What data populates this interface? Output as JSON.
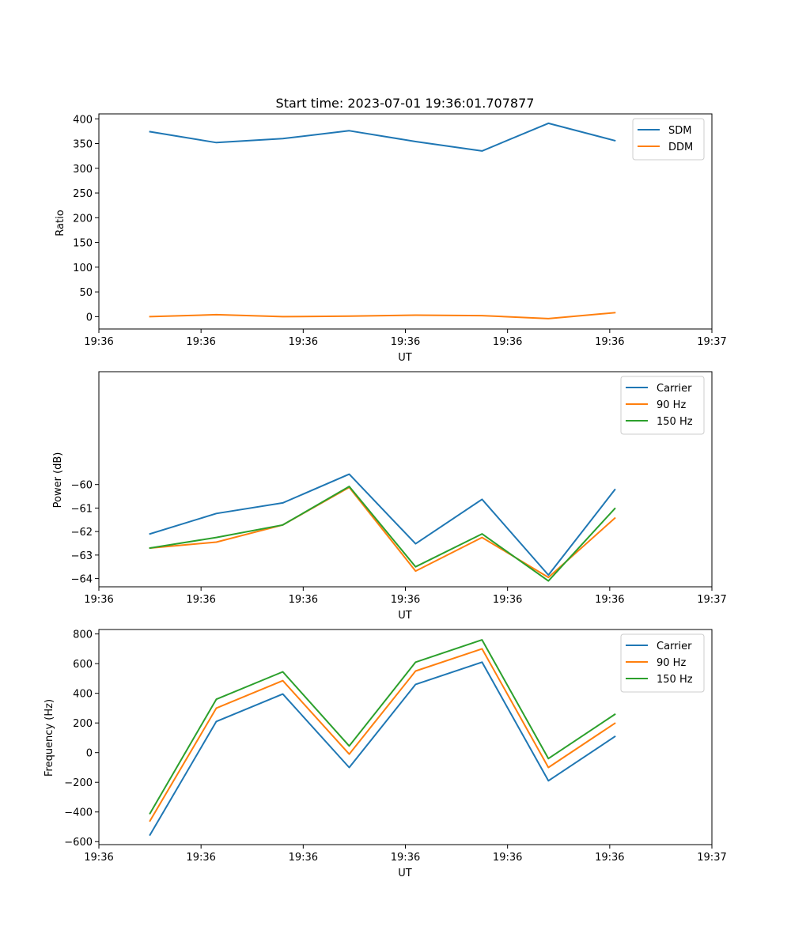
{
  "chart_data": [
    {
      "type": "line",
      "title": "Start time: 2023-07-01 19:36:01.707877",
      "xlabel": "UT",
      "ylabel": "Ratio",
      "xlim": [
        0,
        12
      ],
      "ylim": [
        -25,
        410
      ],
      "x_tick_values": [
        0,
        2,
        4,
        6,
        8,
        10,
        12
      ],
      "x_tick_labels": [
        "19:36",
        "19:36",
        "19:36",
        "19:36",
        "19:36",
        "19:36",
        "19:37"
      ],
      "y_ticks": [
        0,
        50,
        100,
        150,
        200,
        250,
        300,
        350,
        400
      ],
      "x": [
        1,
        2.3,
        3.6,
        4.9,
        6.2,
        7.5,
        8.8,
        10.1
      ],
      "legend_position": "top-right",
      "series": [
        {
          "name": "SDM",
          "color": "#1f77b4",
          "values": [
            374,
            352,
            360,
            376,
            354,
            335,
            391,
            356
          ]
        },
        {
          "name": "DDM",
          "color": "#ff7f0e",
          "values": [
            0,
            4,
            0,
            1,
            3,
            2,
            -4,
            8
          ]
        }
      ]
    },
    {
      "type": "line",
      "title": "",
      "xlabel": "UT",
      "ylabel": "Power (dB)",
      "xlim": [
        0,
        12
      ],
      "ylim": [
        -64.35,
        -55.2
      ],
      "x_tick_values": [
        0,
        2,
        4,
        6,
        8,
        10,
        12
      ],
      "x_tick_labels": [
        "19:36",
        "19:36",
        "19:36",
        "19:36",
        "19:36",
        "19:36",
        "19:37"
      ],
      "y_ticks": [
        -64,
        -63,
        -62,
        -61,
        -60
      ],
      "x": [
        1,
        2.3,
        3.6,
        4.9,
        6.2,
        7.5,
        8.8,
        10.1
      ],
      "legend_position": "top-right",
      "series": [
        {
          "name": "Carrier",
          "color": "#1f77b4",
          "values": [
            -62.1,
            -61.23,
            -60.78,
            -59.56,
            -62.52,
            -60.63,
            -63.85,
            -60.22
          ]
        },
        {
          "name": "90 Hz",
          "color": "#ff7f0e",
          "values": [
            -62.7,
            -62.45,
            -61.72,
            -60.12,
            -63.68,
            -62.25,
            -63.95,
            -61.43
          ]
        },
        {
          "name": "150 Hz",
          "color": "#2ca02c",
          "values": [
            -62.7,
            -62.25,
            -61.72,
            -60.08,
            -63.5,
            -62.1,
            -64.1,
            -61.02
          ]
        }
      ]
    },
    {
      "type": "line",
      "title": "",
      "xlabel": "UT",
      "ylabel": "Frequency (Hz)",
      "xlim": [
        0,
        12
      ],
      "ylim": [
        -620,
        830
      ],
      "x_tick_values": [
        0,
        2,
        4,
        6,
        8,
        10,
        12
      ],
      "x_tick_labels": [
        "19:36",
        "19:36",
        "19:36",
        "19:36",
        "19:36",
        "19:36",
        "19:37"
      ],
      "y_ticks": [
        -600,
        -400,
        -200,
        0,
        200,
        400,
        600,
        800
      ],
      "x": [
        1,
        2.3,
        3.6,
        4.9,
        6.2,
        7.5,
        8.8,
        10.1
      ],
      "legend_position": "top-right",
      "series": [
        {
          "name": "Carrier",
          "color": "#1f77b4",
          "values": [
            -555,
            210,
            395,
            -100,
            460,
            610,
            -190,
            108
          ]
        },
        {
          "name": "90 Hz",
          "color": "#ff7f0e",
          "values": [
            -460,
            300,
            485,
            -10,
            550,
            700,
            -100,
            198
          ]
        },
        {
          "name": "150 Hz",
          "color": "#2ca02c",
          "values": [
            -410,
            360,
            545,
            45,
            610,
            760,
            -40,
            258
          ]
        }
      ]
    }
  ]
}
